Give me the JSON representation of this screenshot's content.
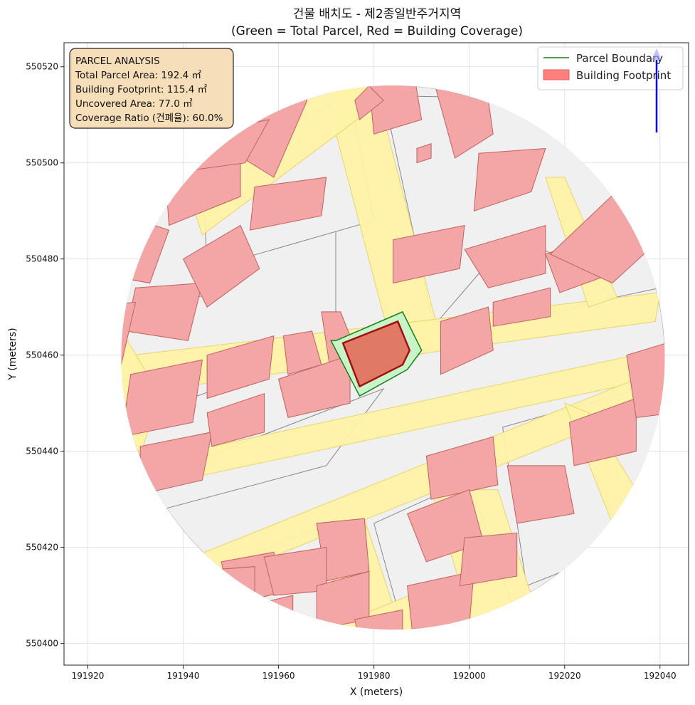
{
  "chart_data": {
    "type": "map",
    "title_line1": "건물 배치도 - 제2종일반주거지역",
    "title_line2": "(Green = Total Parcel, Red = Building Coverage)",
    "xlabel": "X (meters)",
    "ylabel": "Y (meters)",
    "xlim": [
      191915,
      192046
    ],
    "ylim": [
      550395.5,
      550525
    ],
    "x_ticks": [
      191920,
      191940,
      191960,
      191980,
      192000,
      192020,
      192040
    ],
    "y_ticks": [
      550400,
      550420,
      550440,
      550460,
      550480,
      550500,
      550520
    ],
    "x_tick_labels": [
      "191920",
      "191940",
      "191960",
      "191980",
      "192000",
      "192020",
      "192040"
    ],
    "y_tick_labels": [
      "550400",
      "550420",
      "550440",
      "550460",
      "550480",
      "550500",
      "550520"
    ],
    "grid": true,
    "legend_position": "top-right",
    "legend": [
      {
        "label": "Parcel Boundary",
        "kind": "line",
        "color": "#1a7f1a"
      },
      {
        "label": "Building Footprint",
        "kind": "patch",
        "color": "#ff7f7f",
        "edge": "#e06060"
      }
    ],
    "info_box": {
      "lines": [
        "PARCEL ANALYSIS",
        "Total Parcel Area: 192.4 ㎡",
        "Building Footprint: 115.4 ㎡",
        "Uncovered Area: 77.0 ㎡",
        "Coverage Ratio (건폐율): 60.0%"
      ]
    },
    "colors": {
      "context_fill": "#f0f0f0",
      "context_edge": "#888888",
      "road_fill": "#fff2a8",
      "road_edge": "#e8d46a",
      "building_fill": "#f4a6a6",
      "building_edge": "#c06060",
      "parcel_fill": "#c8f5c8",
      "parcel_edge": "#1a7f1a",
      "target_building_fill": "#e07a66",
      "target_building_edge": "#a01010",
      "north_arrow": "#0000dd",
      "info_box_fill": "#f6deb8"
    },
    "target_parcel": [
      [
        191972,
        550463
      ],
      [
        191986,
        550469
      ],
      [
        191990,
        550461
      ],
      [
        191987,
        550457
      ],
      [
        191977,
        550451.5
      ],
      [
        191971,
        550463
      ]
    ],
    "target_building": [
      [
        191973.5,
        550462.5
      ],
      [
        191985,
        550467
      ],
      [
        191987.5,
        550461
      ],
      [
        191986,
        550458
      ],
      [
        191977,
        550453.5
      ]
    ],
    "clip_circle": {
      "cx": 191984,
      "cy": 550459.5,
      "r": 57
    },
    "roads": [
      [
        [
          191972,
          550525
        ],
        [
          191978,
          550525
        ],
        [
          191994,
          550463
        ],
        [
          191985,
          550457
        ],
        [
          191971,
          550510
        ]
      ],
      [
        [
          191922,
          550451
        ],
        [
          191921,
          550459
        ],
        [
          192040,
          550473
        ],
        [
          192039,
          550467
        ]
      ],
      [
        [
          191930,
          550432
        ],
        [
          191932,
          550438
        ],
        [
          192044,
          550462
        ],
        [
          192043,
          550456
        ]
      ],
      [
        [
          191922,
          550460
        ],
        [
          191931,
          550439
        ],
        [
          191935,
          550452
        ],
        [
          191924,
          550470
        ]
      ],
      [
        [
          191941,
          550494
        ],
        [
          191982,
          550527
        ],
        [
          191990,
          550519
        ],
        [
          191944,
          550485
        ]
      ],
      [
        [
          191937,
          550416
        ],
        [
          192045,
          550459
        ],
        [
          192044,
          550452
        ],
        [
          191936,
          550409
        ]
      ],
      [
        [
          191992,
          550432
        ],
        [
          192006,
          550432
        ],
        [
          192013,
          550410
        ],
        [
          192001,
          550403
        ]
      ],
      [
        [
          191968,
          550425
        ],
        [
          191978,
          550426
        ],
        [
          191986,
          550402
        ],
        [
          191975,
          550399
        ]
      ],
      [
        [
          192016,
          550497
        ],
        [
          192020,
          550497
        ],
        [
          192031,
          550472
        ],
        [
          192025,
          550470
        ]
      ],
      [
        [
          192020,
          550450
        ],
        [
          192025,
          550448
        ],
        [
          192035,
          550432
        ],
        [
          192030,
          550425
        ]
      ],
      [
        [
          191960,
          550399
        ],
        [
          191990,
          550411
        ],
        [
          191991,
          550404
        ],
        [
          191960,
          550395
        ]
      ]
    ],
    "context_blocks": [
      [
        [
          191925,
          550468
        ],
        [
          191972,
          550490
        ],
        [
          191972,
          550462
        ],
        [
          191925,
          550445
        ]
      ],
      [
        [
          191932,
          550434
        ],
        [
          191982,
          550453
        ],
        [
          191970,
          550437
        ],
        [
          191936,
          550428
        ]
      ],
      [
        [
          191925,
          550495
        ],
        [
          191941,
          550506
        ],
        [
          191953,
          550476
        ],
        [
          191928,
          550466
        ]
      ],
      [
        [
          191944,
          550500
        ],
        [
          191975,
          550514
        ],
        [
          191980,
          550488
        ],
        [
          191945,
          550478
        ]
      ],
      [
        [
          191982,
          550514
        ],
        [
          192031,
          550513
        ],
        [
          192040,
          550474
        ],
        [
          191993,
          550464
        ]
      ],
      [
        [
          191938,
          550412
        ],
        [
          191968,
          550424
        ],
        [
          191980,
          550400
        ],
        [
          191946,
          550398
        ]
      ],
      [
        [
          191980,
          550425
        ],
        [
          192000,
          550434
        ],
        [
          192010,
          550405
        ],
        [
          191987,
          550400
        ]
      ],
      [
        [
          192007,
          550445
        ],
        [
          192043,
          550455
        ],
        [
          192040,
          550423
        ],
        [
          192012,
          550412
        ]
      ],
      [
        [
          191989,
          550462
        ],
        [
          192009,
          550485
        ],
        [
          192024,
          550478
        ],
        [
          192030,
          550472
        ]
      ]
    ],
    "buildings": [
      [
        [
          191953,
          550521
        ],
        [
          191966,
          550513
        ],
        [
          191959,
          550497
        ],
        [
          191946,
          550505
        ]
      ],
      [
        [
          191936,
          550502
        ],
        [
          191952,
          550502
        ],
        [
          191952,
          550493
        ],
        [
          191937,
          550487
        ]
      ],
      [
        [
          191955,
          550495
        ],
        [
          191970,
          550497
        ],
        [
          191969,
          550489
        ],
        [
          191954,
          550486
        ]
      ],
      [
        [
          191925,
          550490
        ],
        [
          191937,
          550486
        ],
        [
          191933,
          550475
        ],
        [
          191922,
          550477
        ]
      ],
      [
        [
          191930,
          550474
        ],
        [
          191944,
          550475
        ],
        [
          191941,
          550463
        ],
        [
          191928,
          550465
        ]
      ],
      [
        [
          191940,
          550480
        ],
        [
          191952,
          550487
        ],
        [
          191956,
          550478
        ],
        [
          191945,
          550470
        ]
      ],
      [
        [
          191942,
          550506
        ],
        [
          191958,
          550509
        ],
        [
          191953,
          550500
        ],
        [
          191938,
          550498
        ]
      ],
      [
        [
          191919,
          550470
        ],
        [
          191930,
          550471
        ],
        [
          191927,
          550458
        ],
        [
          191918,
          550459
        ]
      ],
      [
        [
          191929,
          550456
        ],
        [
          191944,
          550459
        ],
        [
          191942,
          550446
        ],
        [
          191927,
          550443
        ]
      ],
      [
        [
          191945,
          550460
        ],
        [
          191959,
          550464
        ],
        [
          191958,
          550455
        ],
        [
          191945,
          550451
        ]
      ],
      [
        [
          191961,
          550464
        ],
        [
          191967,
          550465
        ],
        [
          191969,
          550458
        ],
        [
          191962,
          550456
        ]
      ],
      [
        [
          191969,
          550469
        ],
        [
          191973,
          550469
        ],
        [
          191977,
          550459
        ],
        [
          191971,
          550456
        ]
      ],
      [
        [
          191931,
          550441
        ],
        [
          191946,
          550444
        ],
        [
          191944,
          550434
        ],
        [
          191931,
          550431
        ]
      ],
      [
        [
          191945,
          550448
        ],
        [
          191957,
          550452
        ],
        [
          191957,
          550444
        ],
        [
          191946,
          550441
        ]
      ],
      [
        [
          191960,
          550455
        ],
        [
          191975,
          550460
        ],
        [
          191975,
          550450
        ],
        [
          191962,
          550447
        ]
      ],
      [
        [
          191978,
          550527
        ],
        [
          191987,
          550527
        ],
        [
          191990,
          550509
        ],
        [
          191980,
          550506
        ]
      ],
      [
        [
          191992,
          550519
        ],
        [
          192003,
          550520
        ],
        [
          192005,
          550506
        ],
        [
          191997,
          550501
        ]
      ],
      [
        [
          191976,
          550513
        ],
        [
          191979,
          550516
        ],
        [
          191982,
          550513
        ],
        [
          191977,
          550509
        ]
      ],
      [
        [
          191989,
          550503
        ],
        [
          191992,
          550504
        ],
        [
          191992,
          550501
        ],
        [
          191989,
          550500
        ]
      ],
      [
        [
          192002,
          550502
        ],
        [
          192016,
          550503
        ],
        [
          192013,
          550494
        ],
        [
          192001,
          550490
        ]
      ],
      [
        [
          191984,
          550484
        ],
        [
          191999,
          550487
        ],
        [
          191998,
          550478
        ],
        [
          191984,
          550475
        ]
      ],
      [
        [
          191999,
          550482
        ],
        [
          192016,
          550487
        ],
        [
          192016,
          550477
        ],
        [
          192004,
          550474
        ]
      ],
      [
        [
          192016,
          550481
        ],
        [
          192030,
          550486
        ],
        [
          192030,
          550477
        ],
        [
          192019,
          550473
        ]
      ],
      [
        [
          191994,
          550467
        ],
        [
          192004,
          550470
        ],
        [
          192005,
          550461
        ],
        [
          191994,
          550456
        ]
      ],
      [
        [
          192005,
          550471
        ],
        [
          192017,
          550474
        ],
        [
          192017,
          550468
        ],
        [
          192005,
          550466
        ]
      ],
      [
        [
          192017,
          550481
        ],
        [
          192034,
          550497
        ],
        [
          192041,
          550485
        ],
        [
          192030,
          550475
        ]
      ],
      [
        [
          191991,
          550439
        ],
        [
          192005,
          550443
        ],
        [
          192006,
          550433
        ],
        [
          191992,
          550430
        ]
      ],
      [
        [
          192008,
          550437
        ],
        [
          192020,
          550437
        ],
        [
          192022,
          550427
        ],
        [
          192010,
          550425
        ]
      ],
      [
        [
          192021,
          550446
        ],
        [
          192035,
          550451
        ],
        [
          192035,
          550440
        ],
        [
          192022,
          550437
        ]
      ],
      [
        [
          192033,
          550460
        ],
        [
          192043,
          550463
        ],
        [
          192043,
          550448
        ],
        [
          192035,
          550447
        ]
      ],
      [
        [
          191987,
          550427
        ],
        [
          192000,
          550432
        ],
        [
          192003,
          550421
        ],
        [
          191991,
          550417
        ]
      ],
      [
        [
          191968,
          550425
        ],
        [
          191978,
          550426
        ],
        [
          191979,
          550415
        ],
        [
          191970,
          550413
        ]
      ],
      [
        [
          191948,
          550417
        ],
        [
          191959,
          550419
        ],
        [
          191962,
          550411
        ],
        [
          191950,
          550408
        ]
      ],
      [
        [
          191957,
          550418
        ],
        [
          191970,
          550420
        ],
        [
          191970,
          550411
        ],
        [
          191959,
          550410
        ]
      ],
      [
        [
          191942,
          550415
        ],
        [
          191955,
          550416
        ],
        [
          191955,
          550409
        ],
        [
          191944,
          550408
        ]
      ],
      [
        [
          191950,
          550407
        ],
        [
          191963,
          550410
        ],
        [
          191963,
          550400
        ],
        [
          191951,
          550398
        ]
      ],
      [
        [
          191968,
          550412
        ],
        [
          191979,
          550415
        ],
        [
          191979,
          550405
        ],
        [
          191968,
          550403
        ]
      ],
      [
        [
          191987,
          550412
        ],
        [
          192001,
          550415
        ],
        [
          192000,
          550404
        ],
        [
          191988,
          550403
        ]
      ],
      [
        [
          191940,
          550410
        ],
        [
          191950,
          550412
        ],
        [
          191950,
          550405
        ],
        [
          191942,
          550403
        ]
      ],
      [
        [
          191976,
          550405
        ],
        [
          191986,
          550407
        ],
        [
          191986,
          550401
        ],
        [
          191977,
          550400
        ]
      ],
      [
        [
          191999,
          550422
        ],
        [
          192010,
          550423
        ],
        [
          192010,
          550414
        ],
        [
          191998,
          550412
        ]
      ]
    ]
  }
}
